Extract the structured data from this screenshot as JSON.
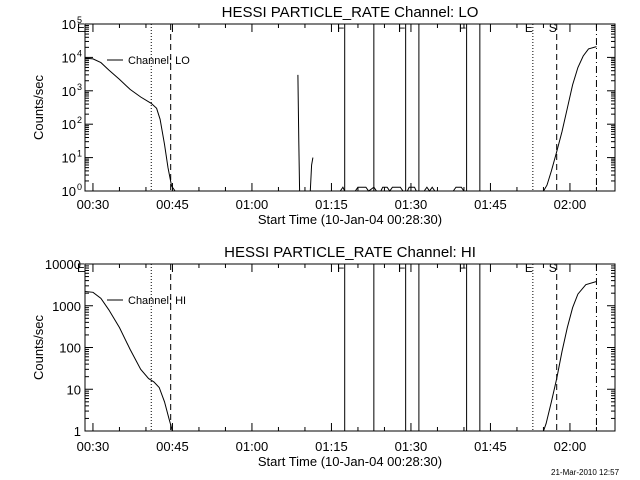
{
  "chart_data": [
    {
      "type": "line",
      "title": "HESSI PARTICLE_RATE Channel: LO",
      "xlabel": "Start Time (10-Jan-04 00:28:30)",
      "ylabel": "Counts/sec",
      "yscale": "log",
      "ylim": [
        1,
        100000
      ],
      "xlim": [
        "00:28:30",
        "02:08:30"
      ],
      "x_ticks": [
        "00:30",
        "00:45",
        "01:00",
        "01:15",
        "01:30",
        "01:45",
        "02:00"
      ],
      "y_ticks": [
        "10^0",
        "10^1",
        "10^2",
        "10^3",
        "10^4",
        "10^5"
      ],
      "legend": "Channel: LO",
      "series": [
        {
          "name": "Channel: LO",
          "segments": [
            [
              [
                "00:28:30",
                9500
              ],
              [
                "00:30:00",
                9000
              ],
              [
                "00:31:30",
                7000
              ],
              [
                "00:33:00",
                4200
              ],
              [
                "00:35:00",
                2200
              ],
              [
                "00:37:00",
                1100
              ],
              [
                "00:39:00",
                650
              ],
              [
                "00:41:00",
                420
              ],
              [
                "00:42:00",
                300
              ],
              [
                "00:42:40",
                140
              ],
              [
                "00:43:30",
                25
              ],
              [
                "00:44:10",
                5
              ],
              [
                "00:44:50",
                1.4
              ],
              [
                "00:45:30",
                1
              ]
            ],
            [
              [
                "01:08:40",
                3000
              ],
              [
                "01:08:50",
                30
              ],
              [
                "01:09:00",
                1
              ]
            ],
            [
              [
                "01:11:00",
                1
              ],
              [
                "01:11:15",
                6
              ],
              [
                "01:11:30",
                10
              ]
            ],
            [
              [
                "01:16:40",
                1
              ],
              [
                "01:17:10",
                1.3
              ],
              [
                "01:17:30",
                1
              ]
            ],
            [
              [
                "01:19:30",
                1
              ],
              [
                "01:20:00",
                1.3
              ],
              [
                "01:21:30",
                1.3
              ],
              [
                "01:22:00",
                1
              ],
              [
                "01:23:00",
                1.3
              ],
              [
                "01:23:30",
                1
              ]
            ],
            [
              [
                "01:24:20",
                1
              ],
              [
                "01:24:40",
                1.3
              ],
              [
                "01:25:30",
                1.3
              ],
              [
                "01:26:00",
                1
              ],
              [
                "01:26:30",
                1.3
              ],
              [
                "01:28:00",
                1.3
              ],
              [
                "01:28:30",
                1
              ]
            ],
            [
              [
                "01:29:20",
                1
              ],
              [
                "01:29:40",
                1.3
              ],
              [
                "01:30:40",
                1.3
              ],
              [
                "01:31:00",
                1
              ]
            ],
            [
              [
                "01:32:30",
                1
              ],
              [
                "01:33:00",
                1.3
              ],
              [
                "01:33:30",
                1
              ],
              [
                "01:34:00",
                1.3
              ],
              [
                "01:34:30",
                1
              ]
            ],
            [
              [
                "01:38:00",
                1
              ],
              [
                "01:38:30",
                1.3
              ],
              [
                "01:39:30",
                1.3
              ],
              [
                "01:40:00",
                1
              ]
            ],
            [
              [
                "01:55:00",
                1
              ],
              [
                "01:55:40",
                1.5
              ],
              [
                "01:56:30",
                4
              ],
              [
                "01:57:30",
                15
              ],
              [
                "01:58:30",
                60
              ],
              [
                "01:59:30",
                300
              ],
              [
                "02:00:30",
                1500
              ],
              [
                "02:01:30",
                5000
              ],
              [
                "02:02:30",
                11000
              ],
              [
                "02:03:30",
                18000
              ],
              [
                "02:05:00",
                21000
              ]
            ]
          ]
        }
      ]
    },
    {
      "type": "line",
      "title": "HESSI PARTICLE_RATE Channel: HI",
      "xlabel": "Start Time (10-Jan-04 00:28:30)",
      "ylabel": "Counts/sec",
      "yscale": "log",
      "ylim": [
        1,
        10000
      ],
      "xlim": [
        "00:28:30",
        "02:08:30"
      ],
      "x_ticks": [
        "00:30",
        "00:45",
        "01:00",
        "01:15",
        "01:30",
        "01:45",
        "02:00"
      ],
      "y_ticks": [
        "1",
        "10",
        "100",
        "1000",
        "10000"
      ],
      "legend": "Channel: HI",
      "series": [
        {
          "name": "Channel: HI",
          "segments": [
            [
              [
                "00:28:30",
                2200
              ],
              [
                "00:30:00",
                2100
              ],
              [
                "00:31:30",
                1500
              ],
              [
                "00:33:00",
                800
              ],
              [
                "00:35:00",
                300
              ],
              [
                "00:37:00",
                90
              ],
              [
                "00:39:00",
                30
              ],
              [
                "00:40:30",
                18
              ],
              [
                "00:41:30",
                15
              ],
              [
                "00:42:30",
                11
              ],
              [
                "00:43:30",
                5
              ],
              [
                "00:44:20",
                2
              ],
              [
                "00:45:00",
                1
              ]
            ],
            [
              [
                "01:55:00",
                1
              ],
              [
                "01:55:30",
                1.5
              ],
              [
                "01:56:30",
                5
              ],
              [
                "01:57:30",
                18
              ],
              [
                "01:58:30",
                80
              ],
              [
                "01:59:30",
                300
              ],
              [
                "02:00:30",
                900
              ],
              [
                "02:01:30",
                1900
              ],
              [
                "02:03:00",
                3200
              ],
              [
                "02:05:00",
                3800
              ]
            ]
          ]
        }
      ]
    }
  ],
  "markers": [
    {
      "time": "00:28:30",
      "label": "E",
      "style": "solid-edge"
    },
    {
      "time": "00:41:00",
      "label": "",
      "style": "dotted"
    },
    {
      "time": "00:44:40",
      "label": "",
      "style": "dashed"
    },
    {
      "time": "01:17:30",
      "label": "F",
      "style": "solid"
    },
    {
      "time": "01:23:00",
      "label": "",
      "style": "solid"
    },
    {
      "time": "01:29:00",
      "label": "F",
      "style": "solid"
    },
    {
      "time": "01:31:30",
      "label": "",
      "style": "solid"
    },
    {
      "time": "01:40:30",
      "label": "F",
      "style": "solid"
    },
    {
      "time": "01:43:00",
      "label": "",
      "style": "solid"
    },
    {
      "time": "01:53:00",
      "label": "E",
      "style": "dotted"
    },
    {
      "time": "01:57:30",
      "label": "S",
      "style": "dashed"
    },
    {
      "time": "02:05:00",
      "label": "",
      "style": "dashdot"
    }
  ],
  "footer": {
    "timestamp": "21-Mar-2010 12:57"
  }
}
